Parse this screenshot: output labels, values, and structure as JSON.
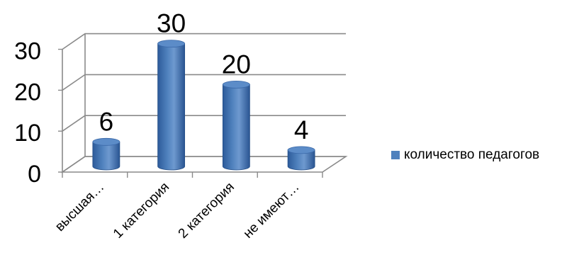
{
  "chart_data": {
    "type": "bar",
    "variant": "3d-cylinder",
    "categories": [
      "высшая…",
      "1 категория",
      "2 категория",
      "не имеют…"
    ],
    "series": [
      {
        "name": "количество педагогов",
        "values": [
          6,
          30,
          20,
          4
        ],
        "color": "#4f81bd"
      }
    ],
    "data_labels": [
      "6",
      "30",
      "20",
      "4"
    ],
    "yticks": [
      0,
      10,
      20,
      30
    ],
    "ytick_labels": [
      "0",
      "10",
      "20",
      "30"
    ],
    "ylim": [
      0,
      30
    ],
    "grid": true,
    "legend_position": "right"
  }
}
